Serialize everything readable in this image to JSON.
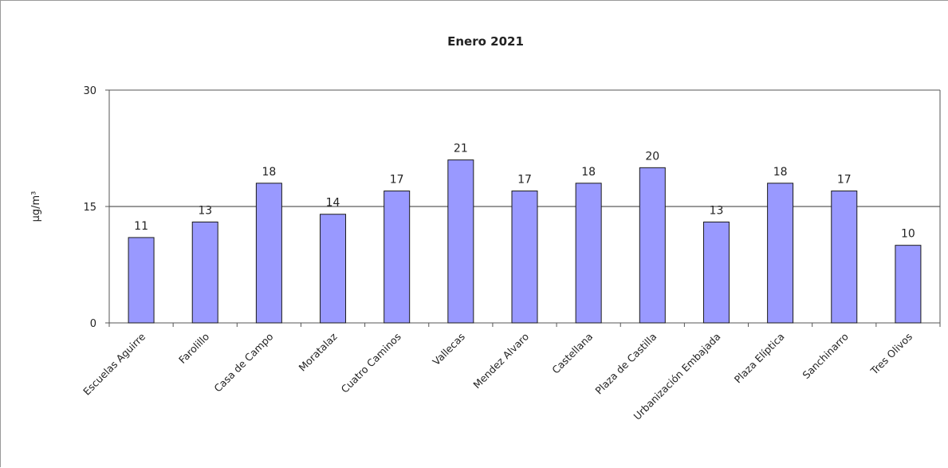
{
  "chart_data": {
    "type": "bar",
    "title": "Enero 2021",
    "xlabel": "",
    "ylabel": "µg/m³",
    "ylim": [
      0,
      30
    ],
    "yticks": [
      0,
      15,
      30
    ],
    "grid": true,
    "categories": [
      "Escuelas Aguirre",
      "Farolillo",
      "Casa de Campo",
      "Moratalaz",
      "Cuatro Caminos",
      "Vallecas",
      "Mendez Alvaro",
      "Castellana",
      "Plaza de Castilla",
      "Urbanización Embajada",
      "Plaza Elíptica",
      "Sanchinarro",
      "Tres Olivos"
    ],
    "values": [
      11,
      13,
      18,
      14,
      17,
      21,
      17,
      18,
      20,
      13,
      18,
      17,
      10
    ],
    "colors": {
      "bar_fill": "#9999ff",
      "bar_stroke": "#1a1a1a",
      "gridline": "#333333",
      "axis": "#555555"
    }
  }
}
